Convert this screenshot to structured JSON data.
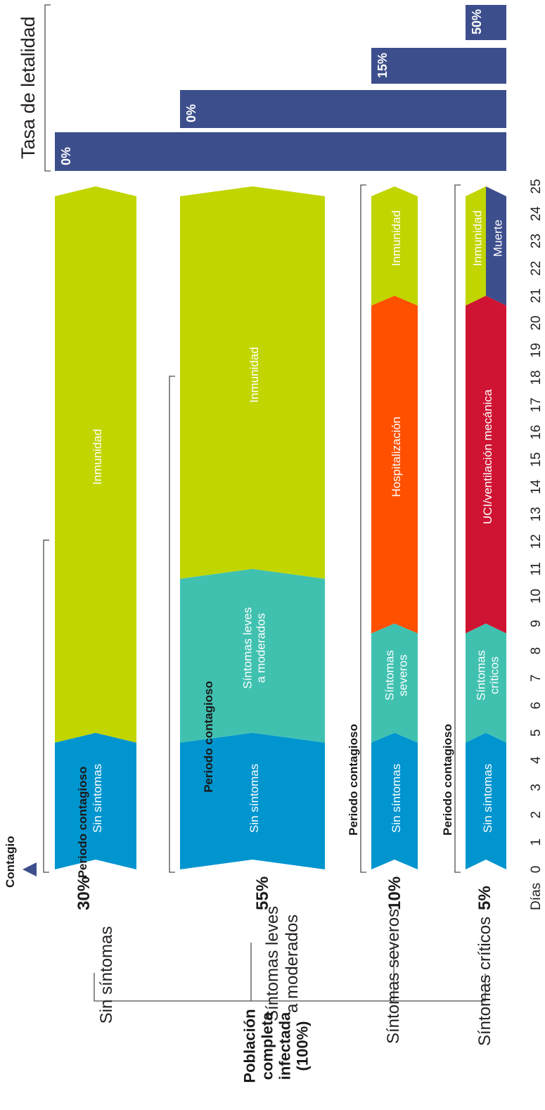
{
  "colors": {
    "no_symptoms": "#0095cf",
    "mild": "#40c1b0",
    "immunity": "#c1d500",
    "hospital": "#ff5000",
    "icu": "#cf1433",
    "death": "#3d4e8c",
    "mortality_bar": "#3d4e8c",
    "bracket": "#4d4d4d"
  },
  "start_label": "Contagio",
  "days_label": "Días",
  "days": [
    "0",
    "1",
    "2",
    "3",
    "4",
    "5",
    "6",
    "7",
    "8",
    "9",
    "10",
    "11",
    "12",
    "13",
    "14",
    "15",
    "16",
    "17",
    "18",
    "19",
    "20",
    "21",
    "22",
    "23",
    "24",
    "25"
  ],
  "root_label": [
    "Población",
    "completa",
    "infectada",
    "(100%)"
  ],
  "mortality_title": "Tasa de letalidad",
  "rows": [
    {
      "name": "Sin síntomas",
      "label_lines": [
        "Sin síntomas"
      ],
      "percent": "30%",
      "period_label": "Periodo contagioso",
      "period_days": [
        0,
        12
      ],
      "mortality": "0%",
      "mortality_value": 0,
      "segments": [
        {
          "label": [
            "Sin síntomas"
          ],
          "from": 0,
          "to": 5,
          "color": "no_symptoms"
        },
        {
          "label": [
            "Inmunidad"
          ],
          "from": 5,
          "to": 25,
          "color": "immunity"
        }
      ]
    },
    {
      "name": "Síntomas leves a moderados",
      "label_lines": [
        "Síntomas leves",
        "a moderados"
      ],
      "percent": "55%",
      "period_label": "Periodo contagioso",
      "period_days": [
        0,
        18
      ],
      "mortality": "0%",
      "mortality_value": 0,
      "segments": [
        {
          "label": [
            "Sin síntomas"
          ],
          "from": 0,
          "to": 5,
          "color": "no_symptoms"
        },
        {
          "label": [
            "Síntomas leves",
            "a moderados"
          ],
          "from": 5,
          "to": 11,
          "color": "mild"
        },
        {
          "label": [
            "Inmunidad"
          ],
          "from": 11,
          "to": 25,
          "color": "immunity"
        }
      ]
    },
    {
      "name": "Síntomas severos",
      "label_lines": [
        "Síntomas severos"
      ],
      "percent": "10%",
      "period_label": "Periodo contagioso",
      "period_days": [
        0,
        25
      ],
      "mortality": "15%",
      "mortality_value": 15,
      "segments": [
        {
          "label": [
            "Sin síntomas"
          ],
          "from": 0,
          "to": 5,
          "color": "no_symptoms"
        },
        {
          "label": [
            "Síntomas",
            "severos"
          ],
          "from": 5,
          "to": 9,
          "color": "mild"
        },
        {
          "label": [
            "Hospitalización"
          ],
          "from": 9,
          "to": 21,
          "color": "hospital"
        },
        {
          "label": [
            "Inmunidad"
          ],
          "from": 21,
          "to": 25,
          "color": "immunity"
        }
      ]
    },
    {
      "name": "Síntomas críticos",
      "label_lines": [
        "Síntomas críticos"
      ],
      "percent": "5%",
      "period_label": "Periodo contagioso",
      "period_days": [
        0,
        25
      ],
      "mortality": "50%",
      "mortality_value": 50,
      "segments": [
        {
          "label": [
            "Sin síntomas"
          ],
          "from": 0,
          "to": 5,
          "color": "no_symptoms"
        },
        {
          "label": [
            "Síntomas",
            "críticos"
          ],
          "from": 5,
          "to": 9,
          "color": "mild"
        },
        {
          "label": [
            "UCI/ventilación mecánica"
          ],
          "from": 9,
          "to": 21,
          "color": "icu"
        },
        {
          "label": [
            "Inmunidad"
          ],
          "from": 21,
          "to": 25,
          "color": "immunity",
          "half": "left"
        },
        {
          "label": [
            "Muerte"
          ],
          "from": 21,
          "to": 25,
          "color": "death",
          "half": "right"
        }
      ]
    }
  ]
}
